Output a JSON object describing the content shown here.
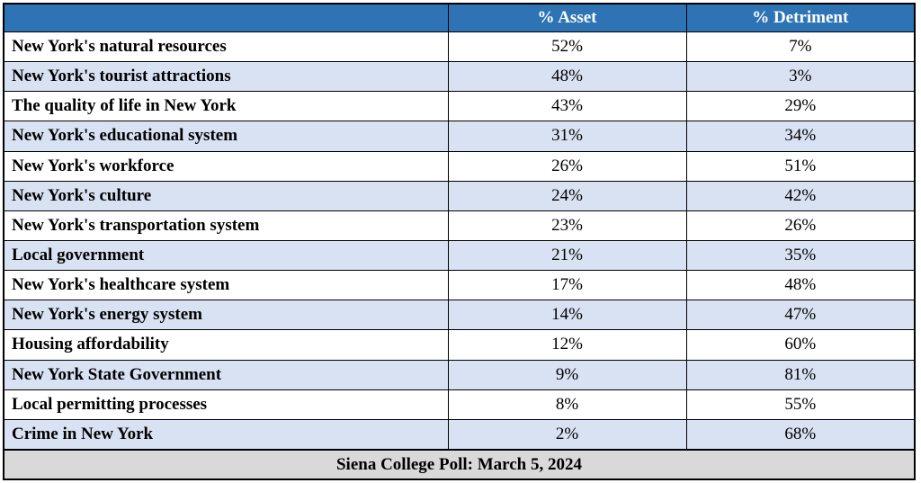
{
  "chart_data": {
    "type": "table",
    "header": {
      "item": "",
      "asset": "% Asset",
      "detriment": "% Detriment"
    },
    "rows": [
      {
        "item": "New York's natural resources",
        "asset": "52%",
        "detriment": "7%"
      },
      {
        "item": "New York's tourist attractions",
        "asset": "48%",
        "detriment": "3%"
      },
      {
        "item": "The quality of life in New York",
        "asset": "43%",
        "detriment": "29%"
      },
      {
        "item": "New York's educational system",
        "asset": "31%",
        "detriment": "34%"
      },
      {
        "item": "New York's workforce",
        "asset": "26%",
        "detriment": "51%"
      },
      {
        "item": "New York's culture",
        "asset": "24%",
        "detriment": "42%"
      },
      {
        "item": "New York's transportation system",
        "asset": "23%",
        "detriment": "26%"
      },
      {
        "item": "Local government",
        "asset": "21%",
        "detriment": "35%"
      },
      {
        "item": "New York's healthcare system",
        "asset": "17%",
        "detriment": "48%"
      },
      {
        "item": "New York's energy system",
        "asset": "14%",
        "detriment": "47%"
      },
      {
        "item": "Housing affordability",
        "asset": "12%",
        "detriment": "60%"
      },
      {
        "item": "New York State Government",
        "asset": "9%",
        "detriment": "81%"
      },
      {
        "item": "Local permitting processes",
        "asset": "8%",
        "detriment": "55%"
      },
      {
        "item": "Crime in New York",
        "asset": "2%",
        "detriment": "68%"
      }
    ],
    "footer": "Siena College Poll: March 5, 2024",
    "colors": {
      "header": "#2e74b5",
      "alt_row": "#d9e2f3",
      "footer": "#d9d9d9"
    }
  }
}
